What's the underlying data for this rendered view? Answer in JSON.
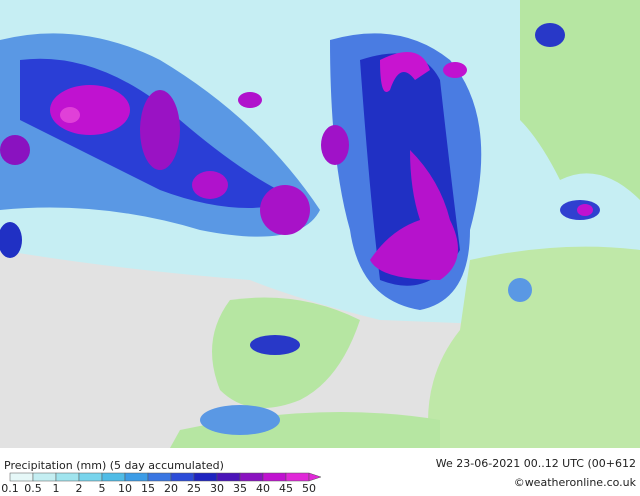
{
  "footer": {
    "title": "Precipitation (mm) (5 day accumulated)",
    "run": "We 23-06-2021 00..12 UTC (00+612",
    "credit": "©weatheronline.co.uk"
  },
  "legend": {
    "labels": [
      "0.1",
      "0.5",
      "1",
      "2",
      "5",
      "10",
      "15",
      "20",
      "25",
      "30",
      "35",
      "40",
      "45",
      "50"
    ],
    "colors": [
      "#e6f8f8",
      "#c4eef2",
      "#a0e4ee",
      "#78d4ec",
      "#50bce6",
      "#3c9ce6",
      "#3a76e2",
      "#2c4cd8",
      "#1e24c0",
      "#4a14b8",
      "#8a12c0",
      "#c012d0",
      "#e028d8"
    ]
  }
}
